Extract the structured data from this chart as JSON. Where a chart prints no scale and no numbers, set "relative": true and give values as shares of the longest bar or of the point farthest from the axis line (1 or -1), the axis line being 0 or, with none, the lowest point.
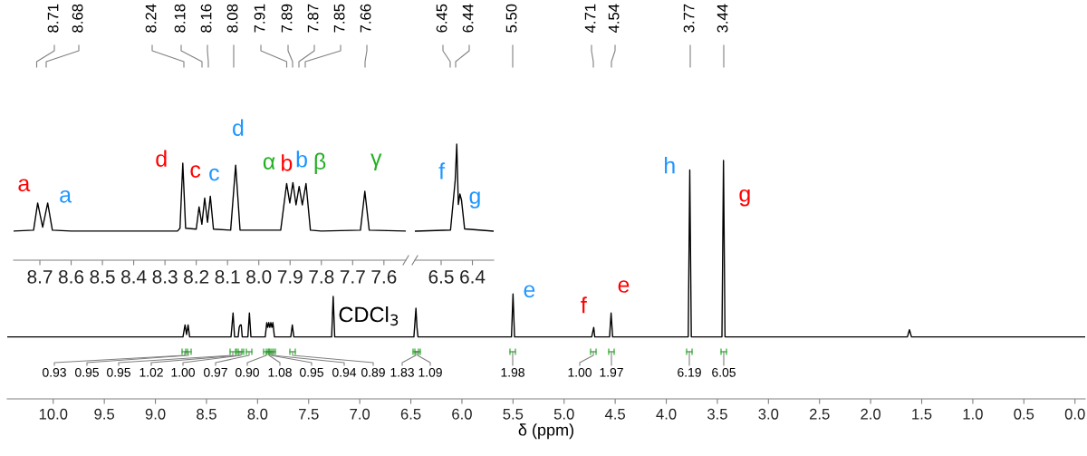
{
  "chart_data": [
    {
      "type": "line",
      "relative": true,
      "xlabel": "δ (ppm)",
      "tick_labels": "x",
      "xlim": [
        10.45,
        -0.1
      ],
      "xticks": [
        {
          "value": 10,
          "label": "10.0"
        },
        {
          "value": 9.5,
          "label": "9.5"
        },
        {
          "value": 9,
          "label": "9.0"
        },
        {
          "value": 8.5,
          "label": "8.5"
        },
        {
          "value": 8,
          "label": "8.0"
        },
        {
          "value": 7.5,
          "label": "7.5"
        },
        {
          "value": 7,
          "label": "7.0"
        },
        {
          "value": 6.5,
          "label": "6.5"
        },
        {
          "value": 6,
          "label": "6.0"
        },
        {
          "value": 5.5,
          "label": "5.5"
        },
        {
          "value": 5,
          "label": "5.0"
        },
        {
          "value": 4.5,
          "label": "4.5"
        },
        {
          "value": 4,
          "label": "4.0"
        },
        {
          "value": 3.5,
          "label": "3.5"
        },
        {
          "value": 3,
          "label": "3.0"
        },
        {
          "value": 2.5,
          "label": "2.5"
        },
        {
          "value": 2,
          "label": "2.0"
        },
        {
          "value": 1.5,
          "label": "1.5"
        },
        {
          "value": 1,
          "label": "1.0"
        },
        {
          "value": 0.5,
          "label": "0.5"
        },
        {
          "value": 0,
          "label": "0.0"
        }
      ],
      "series": [
        {
          "color": "#000000",
          "x": [
            10.45,
            8.73,
            8.71,
            8.695,
            8.68,
            8.665,
            8.26,
            8.24,
            8.225,
            8.19,
            8.18,
            8.17,
            8.16,
            8.15,
            8.095,
            8.08,
            8.065,
            7.925,
            7.91,
            7.9,
            7.89,
            7.88,
            7.87,
            7.86,
            7.85,
            7.835,
            7.675,
            7.66,
            7.645,
            7.275,
            7.26,
            7.245,
            6.47,
            6.45,
            6.44,
            6.43,
            5.515,
            5.5,
            5.485,
            4.73,
            4.71,
            4.7,
            4.555,
            4.54,
            4.525,
            3.785,
            3.77,
            3.755,
            3.455,
            3.44,
            3.425,
            1.64,
            1.62,
            1.6,
            -0.1
          ],
          "values": [
            0.26,
            0.26,
            0.31,
            0.27,
            0.31,
            0.26,
            0.26,
            0.36,
            0.26,
            0.26,
            0.3,
            0.31,
            0.31,
            0.26,
            0.26,
            0.36,
            0.26,
            0.26,
            0.32,
            0.3,
            0.32,
            0.3,
            0.32,
            0.3,
            0.32,
            0.26,
            0.26,
            0.31,
            0.26,
            0.26,
            0.43,
            0.26,
            0.26,
            0.38,
            0.3,
            0.26,
            0.26,
            0.44,
            0.26,
            0.26,
            0.3,
            0.26,
            0.26,
            0.36,
            0.26,
            0.26,
            0.96,
            0.26,
            0.26,
            1,
            0.26,
            0.26,
            0.29,
            0.26,
            0.26
          ]
        }
      ],
      "annotations": [
        "8.71",
        "8.68",
        "8.24",
        "8.18",
        "8.16",
        "8.08",
        "7.91",
        "7.89",
        "7.87",
        "7.85",
        "7.66",
        "6.45",
        "6.44",
        "5.50",
        "4.71",
        "4.54",
        "3.77",
        "3.44",
        "0.93",
        "0.95",
        "0.95",
        "1.02",
        "1.00",
        "0.97",
        "0.90",
        "1.08",
        "0.95",
        "0.94",
        "0.89",
        "1.83",
        "1.09",
        "1.98",
        "1.00",
        "1.97",
        "6.19",
        "6.05",
        {
          "text": "CDCl$_{3}$",
          "x": 7.26,
          "y": 0.43
        },
        {
          "text": "e",
          "x": 5.5,
          "y": 0.44
        },
        {
          "text": "f",
          "x": 4.71,
          "y": 0.3
        },
        {
          "text": "e",
          "x": 4.54,
          "y": 0.36
        },
        {
          "text": "h",
          "x": 3.77,
          "y": 0.96
        },
        {
          "text": "g",
          "x": 3.44,
          "y": 1
        }
      ]
    },
    {
      "type": "line",
      "relative": true,
      "tick_labels": "x",
      "xlim": [
        8.784,
        7.53
      ],
      "xticks": [
        8.7,
        8.6,
        8.5,
        8.4,
        8.3,
        8.2,
        8.1,
        {
          "value": 8.0,
          "label": "8.0"
        },
        7.9,
        7.8,
        7.7,
        7.6
      ],
      "series": [
        {
          "color": "#000000",
          "x": [
            8.784,
            8.72,
            8.707,
            8.691,
            8.675,
            8.66,
            8.6,
            8.26,
            8.252,
            8.243,
            8.234,
            8.2,
            8.191,
            8.182,
            8.173,
            8.164,
            8.155,
            8.145,
            8.09,
            8.074,
            8.06,
            7.93,
            7.911,
            7.901,
            7.891,
            7.881,
            7.871,
            7.861,
            7.849,
            7.835,
            7.8,
            7.675,
            7.661,
            7.647,
            7.53
          ],
          "values": [
            0.3,
            0.31,
            0.59,
            0.34,
            0.59,
            0.31,
            0.3,
            0.3,
            0.33,
            1,
            0.33,
            0.32,
            0.55,
            0.37,
            0.64,
            0.39,
            0.66,
            0.32,
            0.31,
            0.98,
            0.31,
            0.31,
            0.79,
            0.59,
            0.8,
            0.57,
            0.76,
            0.57,
            0.79,
            0.31,
            0.3,
            0.31,
            0.71,
            0.31,
            0.3
          ]
        }
      ],
      "annotations": [
        {
          "text": "a",
          "x": 8.707,
          "y": 0.59
        },
        {
          "text": "a",
          "x": 8.675,
          "y": 0.59
        },
        {
          "text": "d",
          "x": 8.243,
          "y": 1
        },
        {
          "text": "c",
          "x": 8.191,
          "y": 0.55
        },
        {
          "text": "c",
          "x": 8.155,
          "y": 0.66
        },
        {
          "text": "d",
          "x": 8.074,
          "y": 0.98
        },
        {
          "text": "α",
          "x": 7.911,
          "y": 0.79
        },
        {
          "text": "b",
          "x": 7.891,
          "y": 0.8
        },
        {
          "text": "b",
          "x": 7.871,
          "y": 0.76
        },
        {
          "text": "β",
          "x": 7.849,
          "y": 0.79
        },
        {
          "text": "γ",
          "x": 7.661,
          "y": 0.71
        }
      ]
    },
    {
      "type": "line",
      "relative": true,
      "tick_labels": "x",
      "xlim": [
        6.584,
        6.332
      ],
      "xticks": [
        6.5,
        6.4
      ],
      "series": [
        {
          "color": "#000000",
          "x": [
            6.584,
            6.47,
            6.455,
            6.45,
            6.445,
            6.44,
            6.435,
            6.425,
            6.332
          ],
          "values": [
            0.25,
            0.26,
            0.69,
            1,
            0.48,
            0.57,
            0.52,
            0.27,
            0.25
          ]
        }
      ],
      "annotations": [
        {
          "text": "f",
          "x": 6.45,
          "y": 1
        },
        {
          "text": "g",
          "x": 6.44,
          "y": 0.57
        }
      ]
    }
  ]
}
